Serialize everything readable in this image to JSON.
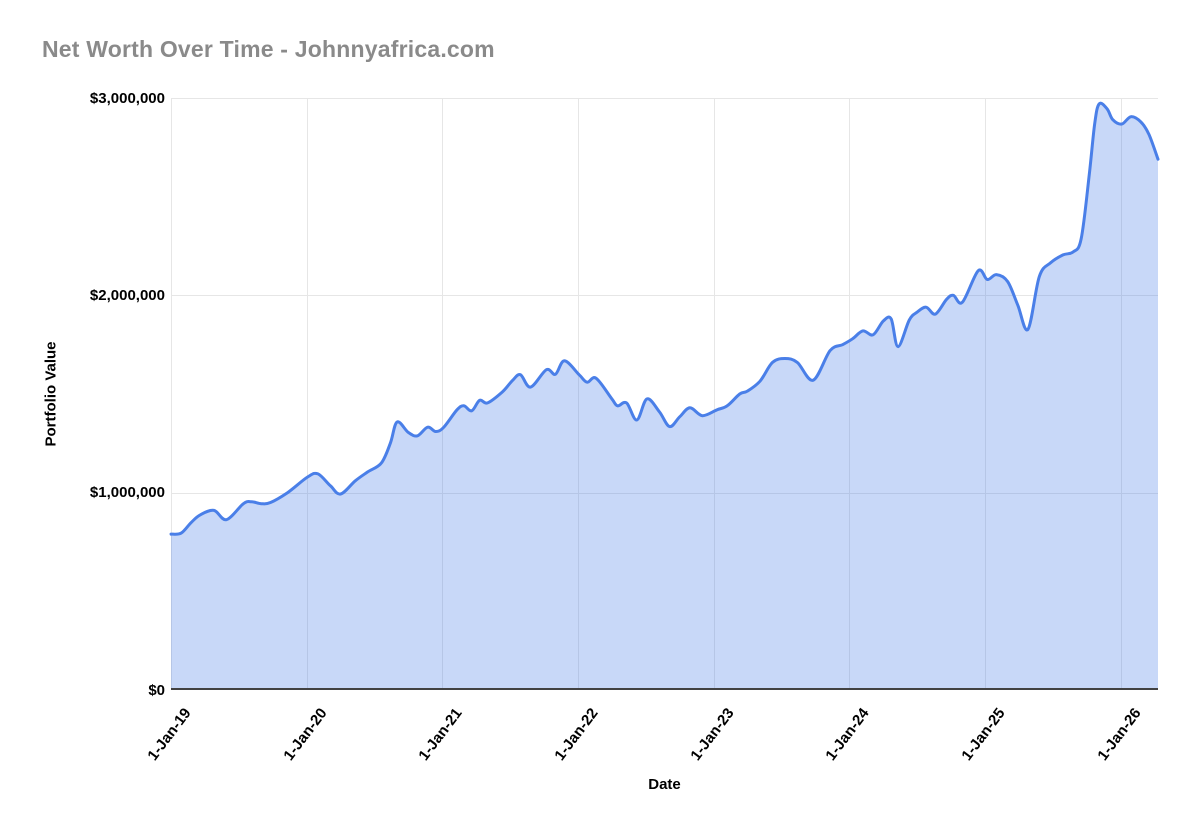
{
  "chart_data": {
    "type": "area",
    "title": "Net Worth Over Time - Johnnyafrica.com",
    "xlabel": "Date",
    "ylabel": "Portfolio Value",
    "legend": "none",
    "grid": true,
    "smooth_line": true,
    "ylim": [
      0,
      3000000
    ],
    "x_unit": "months since 1-Jan-19",
    "x_range_months": [
      0,
      87.3
    ],
    "colors": {
      "line": "#4a7fe8",
      "fill": "#4a7fe8",
      "fill_opacity": 0.3,
      "grid": "#e6e6e6",
      "axis_line": "#424242",
      "title": "#8a8a8a",
      "tick_label": "#000000",
      "background": "#ffffff"
    },
    "y_ticks": [
      {
        "label": "$0",
        "v": 0
      },
      {
        "label": "$1,000,000",
        "v": 1000000
      },
      {
        "label": "$2,000,000",
        "v": 2000000
      },
      {
        "label": "$3,000,000",
        "v": 3000000
      }
    ],
    "x_ticks": [
      {
        "label": "1-Jan-19",
        "m": 0
      },
      {
        "label": "1-Jan-20",
        "m": 12
      },
      {
        "label": "1-Jan-21",
        "m": 24
      },
      {
        "label": "1-Jan-22",
        "m": 36
      },
      {
        "label": "1-Jan-23",
        "m": 48
      },
      {
        "label": "1-Jan-24",
        "m": 60
      },
      {
        "label": "1-Jan-25",
        "m": 72
      },
      {
        "label": "1-Jan-26",
        "m": 84
      }
    ],
    "series": [
      {
        "name": "Portfolio Value",
        "points": [
          [
            0,
            790000
          ],
          [
            0.9,
            795000
          ],
          [
            1.8,
            850000
          ],
          [
            2.6,
            888000
          ],
          [
            3.8,
            910000
          ],
          [
            4.9,
            863000
          ],
          [
            6.4,
            944000
          ],
          [
            7.1,
            954000
          ],
          [
            8.0,
            944000
          ],
          [
            8.8,
            950000
          ],
          [
            10.3,
            1000000
          ],
          [
            12.1,
            1080000
          ],
          [
            13.0,
            1095000
          ],
          [
            14.1,
            1035000
          ],
          [
            15.0,
            993000
          ],
          [
            16.3,
            1060000
          ],
          [
            17.4,
            1105000
          ],
          [
            18.6,
            1150000
          ],
          [
            19.4,
            1250000
          ],
          [
            20.0,
            1358000
          ],
          [
            21.0,
            1305000
          ],
          [
            21.8,
            1288000
          ],
          [
            22.7,
            1332000
          ],
          [
            23.4,
            1310000
          ],
          [
            24.1,
            1330000
          ],
          [
            25.3,
            1420000
          ],
          [
            25.9,
            1440000
          ],
          [
            26.6,
            1415000
          ],
          [
            27.3,
            1468000
          ],
          [
            28.0,
            1455000
          ],
          [
            29.3,
            1510000
          ],
          [
            30.2,
            1568000
          ],
          [
            30.9,
            1598000
          ],
          [
            31.8,
            1535000
          ],
          [
            33.2,
            1623000
          ],
          [
            34.0,
            1600000
          ],
          [
            34.8,
            1668000
          ],
          [
            36.1,
            1598000
          ],
          [
            36.8,
            1560000
          ],
          [
            37.6,
            1580000
          ],
          [
            39.0,
            1475000
          ],
          [
            39.5,
            1440000
          ],
          [
            40.3,
            1455000
          ],
          [
            41.2,
            1368000
          ],
          [
            42.1,
            1475000
          ],
          [
            43.2,
            1410000
          ],
          [
            44.1,
            1335000
          ],
          [
            45.0,
            1385000
          ],
          [
            45.9,
            1430000
          ],
          [
            47.0,
            1390000
          ],
          [
            48.3,
            1420000
          ],
          [
            49.2,
            1440000
          ],
          [
            50.3,
            1500000
          ],
          [
            51.0,
            1515000
          ],
          [
            52.1,
            1565000
          ],
          [
            53.2,
            1660000
          ],
          [
            54.3,
            1680000
          ],
          [
            55.4,
            1660000
          ],
          [
            56.8,
            1570000
          ],
          [
            58.3,
            1720000
          ],
          [
            59.4,
            1750000
          ],
          [
            60.3,
            1780000
          ],
          [
            61.2,
            1820000
          ],
          [
            62.1,
            1800000
          ],
          [
            63.0,
            1870000
          ],
          [
            63.7,
            1880000
          ],
          [
            64.3,
            1740000
          ],
          [
            65.3,
            1875000
          ],
          [
            66.0,
            1915000
          ],
          [
            66.8,
            1940000
          ],
          [
            67.6,
            1905000
          ],
          [
            68.6,
            1980000
          ],
          [
            69.2,
            2000000
          ],
          [
            70.0,
            1965000
          ],
          [
            71.4,
            2125000
          ],
          [
            72.2,
            2080000
          ],
          [
            73.0,
            2105000
          ],
          [
            74.0,
            2070000
          ],
          [
            74.9,
            1950000
          ],
          [
            75.8,
            1828000
          ],
          [
            76.8,
            2095000
          ],
          [
            77.8,
            2165000
          ],
          [
            78.9,
            2205000
          ],
          [
            79.8,
            2220000
          ],
          [
            80.5,
            2285000
          ],
          [
            81.2,
            2600000
          ],
          [
            81.7,
            2870000
          ],
          [
            82.1,
            2970000
          ],
          [
            82.8,
            2945000
          ],
          [
            83.3,
            2890000
          ],
          [
            84.1,
            2868000
          ],
          [
            84.9,
            2905000
          ],
          [
            85.8,
            2878000
          ],
          [
            86.5,
            2815000
          ],
          [
            87.3,
            2690000
          ]
        ]
      }
    ]
  }
}
